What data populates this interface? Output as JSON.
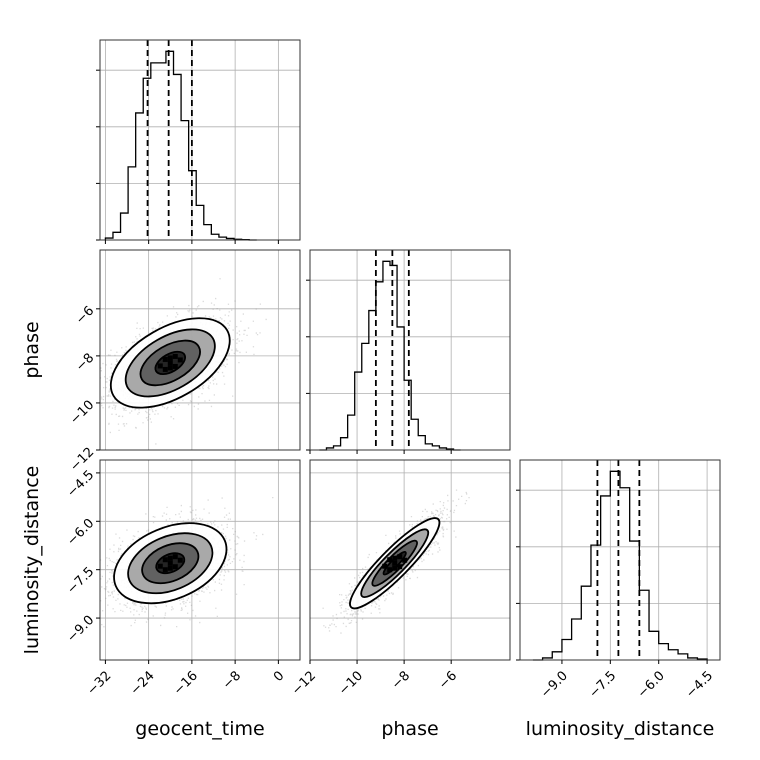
{
  "chart_data": {
    "type": "corner",
    "parameters": [
      "geocent_time",
      "phase",
      "luminosity_distance"
    ],
    "axis_labels": {
      "x": [
        "geocent_time",
        "phase",
        "luminosity_distance"
      ],
      "y": [
        "phase",
        "luminosity_distance"
      ]
    },
    "ranges": {
      "geocent_time": [
        -33,
        4
      ],
      "phase": [
        -12,
        -3.5
      ],
      "luminosity_distance": [
        -10.3,
        -4.1
      ]
    },
    "ticks": {
      "geocent_time": [
        "-32",
        "-24",
        "-16",
        "-8",
        "0"
      ],
      "phase_x": [
        "-12",
        "-10",
        "-8",
        "-6"
      ],
      "phase_y": [
        "-6",
        "-8",
        "-10",
        "-12"
      ],
      "luminosity_distance_x": [
        "-9.0",
        "-7.5",
        "-6.0",
        "-4.5"
      ],
      "luminosity_distance_y": [
        "-4.5",
        "-6.0",
        "-7.5",
        "-9.0"
      ]
    },
    "tick_values": {
      "geocent_time": [
        -32,
        -24,
        -16,
        -8,
        0
      ],
      "phase": [
        -12,
        -10,
        -8,
        -6
      ],
      "luminosity_distance": [
        -9.0,
        -7.5,
        -6.0,
        -4.5
      ]
    },
    "grid": true,
    "histograms": [
      {
        "parameter": "geocent_time",
        "edges": [
          -32,
          -30.6,
          -29.2,
          -27.8,
          -26.4,
          -25,
          -23.6,
          -22.2,
          -20.8,
          -19.4,
          -18,
          -16.6,
          -15.2,
          -13.8,
          -12.4,
          -11,
          -9.6,
          -8.2,
          -6.8,
          -5.4,
          -4
        ],
        "counts": [
          1,
          4,
          14,
          38,
          66,
          84,
          92,
          92,
          98,
          86,
          62,
          36,
          18,
          8,
          3,
          1.5,
          0.8,
          0.4,
          0.2,
          0
        ],
        "quantiles": [
          -24.2,
          -20.3,
          -16.0
        ]
      },
      {
        "parameter": "phase",
        "edges": [
          -11.6,
          -11.3,
          -11.0,
          -10.7,
          -10.4,
          -10.1,
          -9.8,
          -9.5,
          -9.2,
          -8.9,
          -8.6,
          -8.3,
          -8.0,
          -7.7,
          -7.4,
          -7.1,
          -6.8,
          -6.5,
          -6.2,
          -5.9,
          -5.6
        ],
        "counts": [
          0,
          1,
          2,
          6,
          17,
          38,
          52,
          68,
          82,
          92,
          90,
          60,
          34,
          15,
          7,
          3,
          2,
          1,
          0.5,
          0
        ],
        "quantiles": [
          -9.2,
          -8.5,
          -7.8
        ]
      },
      {
        "parameter": "luminosity_distance",
        "edges": [
          -9.9,
          -9.6,
          -9.3,
          -9.0,
          -8.7,
          -8.4,
          -8.1,
          -7.8,
          -7.5,
          -7.2,
          -6.9,
          -6.6,
          -6.3,
          -6.0,
          -5.7,
          -5.4,
          -5.1,
          -4.8,
          -4.5
        ],
        "counts": [
          0,
          1,
          4,
          10,
          20,
          36,
          56,
          80,
          92,
          84,
          58,
          34,
          14,
          8,
          5,
          3,
          1,
          0.5
        ],
        "quantiles": [
          -7.9,
          -7.25,
          -6.6
        ]
      }
    ],
    "scatter_2d": [
      {
        "x": "geocent_time",
        "y": "phase",
        "center": [
          -20,
          -8.3
        ],
        "sd": [
          5.5,
          0.95
        ],
        "corr": 0.5
      },
      {
        "x": "geocent_time",
        "y": "luminosity_distance",
        "center": [
          -20,
          -7.3
        ],
        "sd": [
          5.2,
          0.62
        ],
        "corr": 0.35
      },
      {
        "x": "phase",
        "y": "luminosity_distance",
        "center": [
          -8.4,
          -7.3
        ],
        "sd": [
          0.95,
          0.7
        ],
        "corr": 0.9
      }
    ],
    "scatter_points_per_panel": 2200,
    "contour_levels_sigma": [
      0.5,
      1.0,
      1.5,
      2.0
    ]
  }
}
